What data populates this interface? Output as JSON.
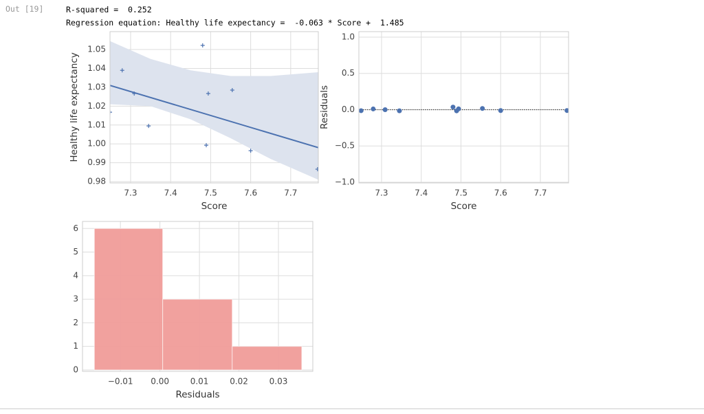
{
  "cell": {
    "prompt": "Out [19]",
    "lines": [
      "R-squared =  0.252",
      "Regression equation: Healthy life expectancy =  -0.063 * Score +  1.485"
    ]
  },
  "chart_data": [
    {
      "type": "scatter",
      "marker": "plus",
      "xlabel": "Score",
      "ylabel": "Healthy life expectancy",
      "color": "#4c72b0",
      "x": [
        7.2485,
        7.279,
        7.309,
        7.345,
        7.48,
        7.494,
        7.489,
        7.554,
        7.6,
        7.767
      ],
      "values": [
        1.0168,
        1.039,
        1.0267,
        1.0095,
        1.0522,
        1.0267,
        0.9993,
        1.0285,
        0.9964,
        0.9866
      ],
      "regression": {
        "x": [
          7.2485,
          7.769
        ],
        "values": [
          1.031,
          0.998
        ]
      },
      "band": {
        "x": [
          7.2485,
          7.35,
          7.45,
          7.55,
          7.65,
          7.769
        ],
        "upper": [
          1.0545,
          1.045,
          1.039,
          1.036,
          1.036,
          1.038
        ],
        "lower": [
          1.021,
          1.02,
          1.013,
          1.003,
          0.992,
          0.981
        ],
        "color": "#dde3ee"
      },
      "xlim": [
        7.2485,
        7.769
      ],
      "ylim": [
        0.9793,
        1.0595
      ],
      "xticks": [
        7.3,
        7.4,
        7.5,
        7.6,
        7.7
      ],
      "yticks": [
        0.98,
        0.99,
        {
          "value": 1,
          "label": "1.00"
        },
        1.01,
        1.02,
        1.03,
        1.04,
        1.05
      ],
      "grid": true
    },
    {
      "type": "scatter",
      "marker": "dot",
      "xlabel": "Score",
      "ylabel": "Residuals",
      "color": "#4c72b0",
      "x": [
        7.2485,
        7.279,
        7.309,
        7.345,
        7.48,
        7.494,
        7.489,
        7.554,
        7.6,
        7.767
      ],
      "values": [
        -0.014,
        0.0099,
        -0.0005,
        -0.0154,
        0.0359,
        0.0113,
        -0.0164,
        0.0169,
        -0.0123,
        -0.0115
      ],
      "hline": 0,
      "xlim": [
        7.2429,
        7.771
      ],
      "ylim": [
        -1.01,
        1.076
      ],
      "xticks": [
        7.3,
        7.4,
        7.5,
        7.6,
        7.7
      ],
      "yticks": [
        {
          "value": -1,
          "label": "−1.0"
        },
        {
          "value": -0.5,
          "label": "−0.5"
        },
        {
          "value": 0,
          "label": "0.0"
        },
        0.5,
        {
          "value": 1,
          "label": "1.0"
        }
      ],
      "grid": true
    },
    {
      "type": "histogram",
      "xlabel": "Residuals",
      "color": "#f09c99",
      "bins": [
        -0.0166,
        0.0007,
        0.0183,
        0.0359
      ],
      "values": [
        6,
        3,
        1
      ],
      "xlim": [
        -0.0196,
        0.0387
      ],
      "ylim": [
        -0.06,
        6.3
      ],
      "xticks": [
        {
          "value": -0.01,
          "label": "−0.01"
        },
        {
          "value": 0,
          "label": "0.00"
        },
        0.01,
        0.02,
        0.03
      ],
      "yticks": [
        0,
        1,
        2,
        3,
        4,
        5,
        6
      ],
      "grid": true
    }
  ]
}
